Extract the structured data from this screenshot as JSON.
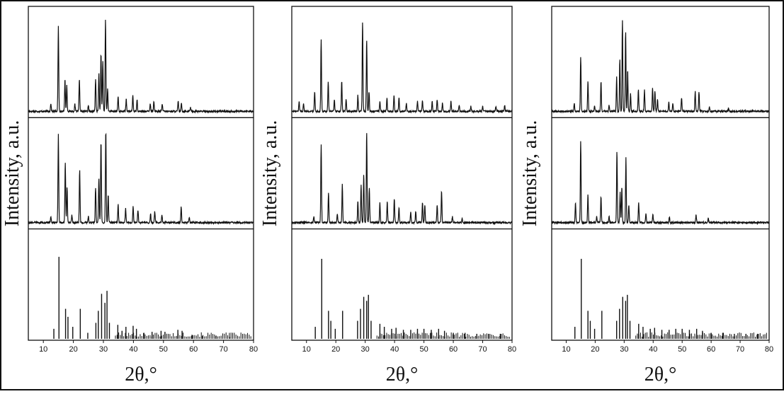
{
  "chart_data": [
    {
      "type": "line",
      "xlabel": "2θ,°",
      "ylabel": "Intensity, a.u.",
      "xlim": [
        5,
        80
      ],
      "ticks": [
        10,
        20,
        30,
        40,
        50,
        60,
        70,
        80
      ],
      "tick_labels": [
        "10",
        "20",
        "30",
        "40",
        "50",
        "60",
        "70",
        "80"
      ],
      "grid": false,
      "subplots": [
        {
          "position": "top",
          "peaks": [
            [
              12.5,
              0.08
            ],
            [
              15.0,
              0.85
            ],
            [
              17.2,
              0.32
            ],
            [
              17.8,
              0.26
            ],
            [
              20.5,
              0.07
            ],
            [
              22.0,
              0.32
            ],
            [
              25.0,
              0.06
            ],
            [
              27.4,
              0.32
            ],
            [
              28.5,
              0.38
            ],
            [
              29.2,
              0.58
            ],
            [
              29.8,
              0.5
            ],
            [
              30.7,
              0.92
            ],
            [
              31.4,
              0.22
            ],
            [
              34.9,
              0.15
            ],
            [
              37.6,
              0.12
            ],
            [
              39.8,
              0.16
            ],
            [
              41.2,
              0.12
            ],
            [
              45.6,
              0.08
            ],
            [
              46.8,
              0.1
            ],
            [
              49.6,
              0.07
            ],
            [
              54.9,
              0.1
            ],
            [
              56.0,
              0.08
            ],
            [
              59.0,
              0.04
            ]
          ]
        },
        {
          "position": "middle",
          "peaks": [
            [
              12.5,
              0.06
            ],
            [
              15.0,
              0.88
            ],
            [
              17.3,
              0.6
            ],
            [
              17.9,
              0.35
            ],
            [
              19.5,
              0.08
            ],
            [
              22.1,
              0.52
            ],
            [
              25.0,
              0.06
            ],
            [
              27.4,
              0.35
            ],
            [
              28.5,
              0.45
            ],
            [
              29.2,
              0.82
            ],
            [
              30.8,
              0.92
            ],
            [
              31.6,
              0.28
            ],
            [
              34.9,
              0.18
            ],
            [
              37.4,
              0.14
            ],
            [
              39.9,
              0.16
            ],
            [
              41.5,
              0.13
            ],
            [
              45.7,
              0.09
            ],
            [
              47.1,
              0.11
            ],
            [
              49.5,
              0.08
            ],
            [
              55.9,
              0.16
            ],
            [
              58.6,
              0.05
            ]
          ]
        },
        {
          "position": "bottom",
          "peaks": [
            [
              13.5,
              0.1
            ],
            [
              15.2,
              0.82
            ],
            [
              17.4,
              0.3
            ],
            [
              18.2,
              0.22
            ],
            [
              19.8,
              0.12
            ],
            [
              22.3,
              0.3
            ],
            [
              24.8,
              0.06
            ],
            [
              27.5,
              0.16
            ],
            [
              28.3,
              0.28
            ],
            [
              29.4,
              0.45
            ],
            [
              30.5,
              0.36
            ],
            [
              31.2,
              0.48
            ],
            [
              32.0,
              0.16
            ],
            [
              34.8,
              0.14
            ],
            [
              36.2,
              0.08
            ],
            [
              37.5,
              0.12
            ],
            [
              39.9,
              0.13
            ],
            [
              41.0,
              0.1
            ],
            [
              43.5,
              0.06
            ],
            [
              46.2,
              0.07
            ],
            [
              49.2,
              0.08
            ],
            [
              50.5,
              0.07
            ],
            [
              54.8,
              0.09
            ],
            [
              56.2,
              0.08
            ],
            [
              59.5,
              0.04
            ],
            [
              63.0,
              0.03
            ],
            [
              67.5,
              0.03
            ],
            [
              72.0,
              0.02
            ]
          ]
        }
      ]
    },
    {
      "type": "line",
      "xlabel": "2θ,°",
      "ylabel": "Intensity, a.u.",
      "xlim": [
        5,
        80
      ],
      "ticks": [
        10,
        20,
        30,
        40,
        50,
        60,
        70,
        80
      ],
      "tick_labels": [
        "10",
        "20",
        "30",
        "40",
        "50",
        "60",
        "70",
        "80"
      ],
      "grid": false,
      "subplots": [
        {
          "position": "top",
          "peaks": [
            [
              7.5,
              0.1
            ],
            [
              9.0,
              0.08
            ],
            [
              12.8,
              0.2
            ],
            [
              15.0,
              0.72
            ],
            [
              17.4,
              0.3
            ],
            [
              19.5,
              0.12
            ],
            [
              22.0,
              0.3
            ],
            [
              23.5,
              0.12
            ],
            [
              27.5,
              0.16
            ],
            [
              29.1,
              0.9
            ],
            [
              30.5,
              0.72
            ],
            [
              31.3,
              0.2
            ],
            [
              35.0,
              0.1
            ],
            [
              37.4,
              0.14
            ],
            [
              39.8,
              0.16
            ],
            [
              41.5,
              0.14
            ],
            [
              44.0,
              0.08
            ],
            [
              47.8,
              0.1
            ],
            [
              49.5,
              0.1
            ],
            [
              52.8,
              0.1
            ],
            [
              54.5,
              0.12
            ],
            [
              56.3,
              0.08
            ],
            [
              59.2,
              0.1
            ],
            [
              62.0,
              0.06
            ],
            [
              66.0,
              0.05
            ],
            [
              70.0,
              0.05
            ],
            [
              74.5,
              0.05
            ],
            [
              77.5,
              0.06
            ]
          ]
        },
        {
          "position": "middle",
          "peaks": [
            [
              12.5,
              0.06
            ],
            [
              15.0,
              0.78
            ],
            [
              17.5,
              0.3
            ],
            [
              20.5,
              0.08
            ],
            [
              22.2,
              0.38
            ],
            [
              27.5,
              0.22
            ],
            [
              28.6,
              0.38
            ],
            [
              29.5,
              0.48
            ],
            [
              30.5,
              0.9
            ],
            [
              31.4,
              0.35
            ],
            [
              35.0,
              0.2
            ],
            [
              37.5,
              0.22
            ],
            [
              39.9,
              0.24
            ],
            [
              41.5,
              0.15
            ],
            [
              45.5,
              0.1
            ],
            [
              47.2,
              0.12
            ],
            [
              49.5,
              0.2
            ],
            [
              50.3,
              0.18
            ],
            [
              54.5,
              0.18
            ],
            [
              56.0,
              0.32
            ],
            [
              59.7,
              0.06
            ],
            [
              63.0,
              0.04
            ]
          ]
        },
        {
          "position": "bottom",
          "peaks": [
            [
              13.0,
              0.12
            ],
            [
              15.2,
              0.8
            ],
            [
              17.5,
              0.28
            ],
            [
              18.3,
              0.18
            ],
            [
              19.8,
              0.1
            ],
            [
              22.3,
              0.28
            ],
            [
              27.4,
              0.18
            ],
            [
              28.4,
              0.3
            ],
            [
              29.5,
              0.42
            ],
            [
              30.5,
              0.38
            ],
            [
              31.1,
              0.44
            ],
            [
              32.0,
              0.18
            ],
            [
              35.0,
              0.15
            ],
            [
              36.5,
              0.12
            ],
            [
              39.0,
              0.1
            ],
            [
              40.5,
              0.11
            ],
            [
              43.0,
              0.09
            ],
            [
              45.5,
              0.09
            ],
            [
              47.8,
              0.1
            ],
            [
              50.0,
              0.1
            ],
            [
              52.5,
              0.09
            ],
            [
              55.0,
              0.1
            ],
            [
              57.0,
              0.08
            ],
            [
              60.0,
              0.06
            ],
            [
              64.0,
              0.06
            ],
            [
              68.0,
              0.05
            ],
            [
              72.0,
              0.05
            ],
            [
              76.0,
              0.05
            ]
          ]
        }
      ]
    },
    {
      "type": "line",
      "xlabel": "2θ,°",
      "ylabel": "Intensity, a.u.",
      "xlim": [
        5,
        80
      ],
      "ticks": [
        10,
        20,
        30,
        40,
        50,
        60,
        70,
        80
      ],
      "tick_labels": [
        "10",
        "20",
        "30",
        "40",
        "50",
        "60",
        "70",
        "80"
      ],
      "grid": false,
      "subplots": [
        {
          "position": "top",
          "peaks": [
            [
              12.8,
              0.08
            ],
            [
              15.0,
              0.55
            ],
            [
              17.5,
              0.3
            ],
            [
              19.8,
              0.06
            ],
            [
              22.0,
              0.3
            ],
            [
              24.8,
              0.06
            ],
            [
              27.4,
              0.34
            ],
            [
              28.5,
              0.52
            ],
            [
              29.4,
              0.92
            ],
            [
              30.5,
              0.8
            ],
            [
              31.2,
              0.42
            ],
            [
              32.2,
              0.18
            ],
            [
              34.9,
              0.22
            ],
            [
              37.0,
              0.22
            ],
            [
              39.8,
              0.24
            ],
            [
              40.6,
              0.2
            ],
            [
              41.5,
              0.12
            ],
            [
              45.4,
              0.09
            ],
            [
              46.8,
              0.08
            ],
            [
              49.8,
              0.14
            ],
            [
              54.5,
              0.2
            ],
            [
              55.8,
              0.2
            ],
            [
              59.4,
              0.04
            ],
            [
              66.0,
              0.03
            ]
          ]
        },
        {
          "position": "middle",
          "peaks": [
            [
              13.2,
              0.2
            ],
            [
              15.0,
              0.82
            ],
            [
              17.5,
              0.28
            ],
            [
              20.5,
              0.06
            ],
            [
              22.0,
              0.26
            ],
            [
              24.8,
              0.06
            ],
            [
              27.5,
              0.72
            ],
            [
              28.6,
              0.3
            ],
            [
              29.2,
              0.36
            ],
            [
              30.6,
              0.65
            ],
            [
              31.6,
              0.18
            ],
            [
              35.0,
              0.2
            ],
            [
              37.5,
              0.09
            ],
            [
              39.9,
              0.08
            ],
            [
              45.6,
              0.06
            ],
            [
              54.8,
              0.08
            ],
            [
              59.0,
              0.04
            ]
          ]
        },
        {
          "position": "bottom",
          "peaks": [
            [
              13.0,
              0.12
            ],
            [
              15.2,
              0.8
            ],
            [
              17.5,
              0.28
            ],
            [
              18.3,
              0.18
            ],
            [
              19.8,
              0.1
            ],
            [
              22.3,
              0.28
            ],
            [
              27.4,
              0.18
            ],
            [
              28.4,
              0.3
            ],
            [
              29.5,
              0.42
            ],
            [
              30.5,
              0.38
            ],
            [
              31.1,
              0.44
            ],
            [
              32.0,
              0.18
            ],
            [
              35.0,
              0.15
            ],
            [
              36.5,
              0.12
            ],
            [
              39.0,
              0.1
            ],
            [
              40.5,
              0.11
            ],
            [
              43.0,
              0.09
            ],
            [
              45.5,
              0.09
            ],
            [
              47.8,
              0.1
            ],
            [
              50.0,
              0.1
            ],
            [
              52.5,
              0.09
            ],
            [
              55.0,
              0.1
            ],
            [
              57.0,
              0.08
            ],
            [
              60.0,
              0.06
            ],
            [
              64.0,
              0.06
            ],
            [
              68.0,
              0.05
            ],
            [
              72.0,
              0.05
            ],
            [
              76.0,
              0.05
            ]
          ]
        }
      ]
    }
  ]
}
